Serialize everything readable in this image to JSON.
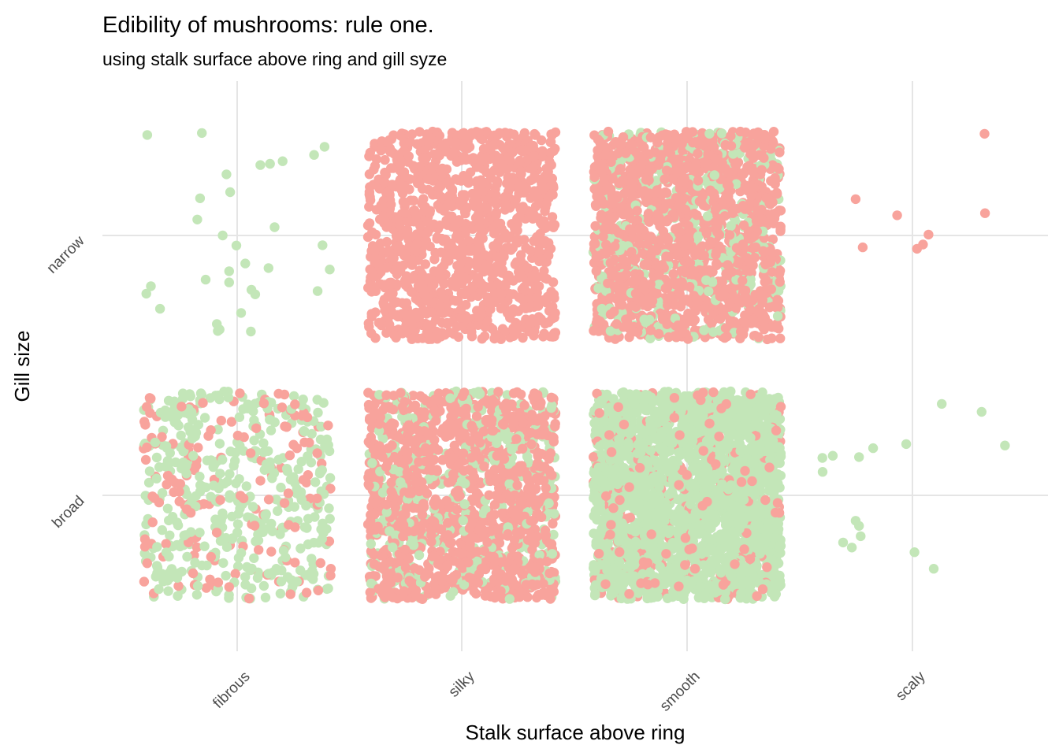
{
  "chart_data": {
    "type": "scatter",
    "jitter": true,
    "title": "Edibility of mushrooms: rule one.",
    "subtitle": "using stalk surface above ring and gill syze",
    "xlabel": "Stalk surface above ring",
    "ylabel": "Gill size",
    "x_categories": [
      "fibrous",
      "silky",
      "smooth",
      "scaly"
    ],
    "y_categories": [
      "broad",
      "narrow"
    ],
    "grid": true,
    "legend": "none",
    "colors": {
      "poisonous": "#F8A39C",
      "edible": "#C3E6B8"
    },
    "groups": [
      {
        "x": "fibrous",
        "y": "narrow",
        "edible_count": 30,
        "poisonous_count": 0
      },
      {
        "x": "silky",
        "y": "narrow",
        "edible_count": 0,
        "poisonous_count": 1200
      },
      {
        "x": "smooth",
        "y": "narrow",
        "edible_count": 400,
        "poisonous_count": 1400
      },
      {
        "x": "scaly",
        "y": "narrow",
        "edible_count": 0,
        "poisonous_count": 8
      },
      {
        "x": "fibrous",
        "y": "broad",
        "edible_count": 420,
        "poisonous_count": 150
      },
      {
        "x": "silky",
        "y": "broad",
        "edible_count": 400,
        "poisonous_count": 1200
      },
      {
        "x": "smooth",
        "y": "broad",
        "edible_count": 2200,
        "poisonous_count": 250
      },
      {
        "x": "scaly",
        "y": "broad",
        "edible_count": 16,
        "poisonous_count": 0
      }
    ]
  }
}
